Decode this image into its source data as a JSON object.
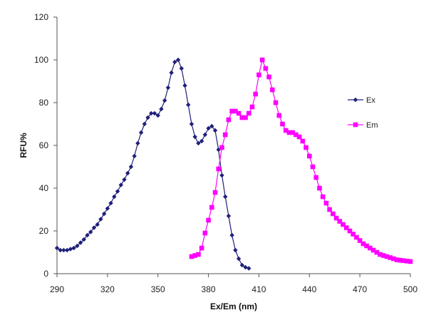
{
  "chart_data": {
    "type": "line",
    "title": "",
    "xlabel": "Ex/Em (nm)",
    "ylabel": "RFU%",
    "xlim": [
      290,
      500
    ],
    "ylim": [
      0,
      120
    ],
    "xticks": [
      290,
      320,
      350,
      380,
      410,
      440,
      470,
      500
    ],
    "yticks": [
      0,
      20,
      40,
      60,
      80,
      100,
      120
    ],
    "grid": false,
    "legend_position": "right",
    "series": [
      {
        "name": "Ex",
        "color": "#1f1f7a",
        "marker": "diamond",
        "x": [
          290,
          292,
          294,
          296,
          298,
          300,
          302,
          304,
          306,
          308,
          310,
          312,
          314,
          316,
          318,
          320,
          322,
          324,
          326,
          328,
          330,
          332,
          334,
          336,
          338,
          340,
          342,
          344,
          346,
          348,
          350,
          352,
          354,
          356,
          358,
          360,
          362,
          364,
          366,
          368,
          370,
          372,
          374,
          376,
          378,
          380,
          382,
          384,
          386,
          388,
          390,
          392,
          394,
          396,
          398,
          400,
          402,
          404
        ],
        "values": [
          12,
          11,
          11,
          11,
          11.5,
          12,
          13,
          14.5,
          16,
          18,
          19.5,
          21.5,
          23,
          25.5,
          28,
          30.5,
          33,
          36,
          38.5,
          41.5,
          44,
          47,
          50,
          55,
          61,
          66,
          70,
          73,
          75,
          75,
          74,
          77,
          81,
          87,
          94,
          99,
          100,
          96,
          88,
          79,
          70,
          64,
          61,
          62,
          65,
          68,
          69,
          67,
          58,
          46,
          36,
          27,
          18,
          11,
          7,
          4,
          3,
          2.5
        ]
      },
      {
        "name": "Em",
        "color": "#ff00ff",
        "marker": "square",
        "x": [
          370,
          372,
          374,
          376,
          378,
          380,
          382,
          384,
          386,
          388,
          390,
          392,
          394,
          396,
          398,
          400,
          402,
          404,
          406,
          408,
          410,
          412,
          414,
          416,
          418,
          420,
          422,
          424,
          426,
          428,
          430,
          432,
          434,
          436,
          438,
          440,
          442,
          444,
          446,
          448,
          450,
          452,
          454,
          456,
          458,
          460,
          462,
          464,
          466,
          468,
          470,
          472,
          474,
          476,
          478,
          480,
          482,
          484,
          486,
          488,
          490,
          492,
          494,
          496,
          498,
          500
        ],
        "values": [
          8,
          8.5,
          9,
          12,
          19,
          25,
          31,
          38,
          49,
          59,
          65,
          72,
          76,
          76,
          75,
          73,
          73,
          75,
          78,
          84,
          93,
          100,
          96,
          92,
          86,
          80,
          74,
          70,
          67,
          66,
          66,
          65,
          64,
          62,
          59,
          55,
          50,
          45,
          40,
          36,
          33,
          30,
          28,
          26,
          24.5,
          23,
          21.5,
          20,
          18.5,
          17,
          15.5,
          14,
          13,
          12,
          11,
          10,
          9,
          8.5,
          8,
          7.5,
          7,
          6.5,
          6.3,
          6.1,
          5.9,
          5.7
        ]
      }
    ]
  }
}
